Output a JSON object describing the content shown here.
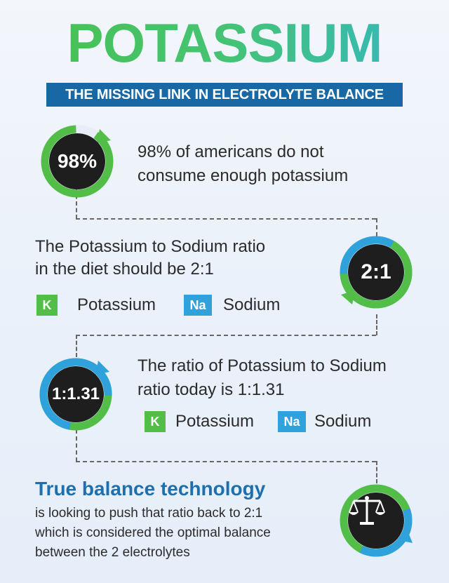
{
  "header": {
    "title": "POTASSIUM",
    "subtitle": "THE MISSING LINK IN ELECTROLYTE BALANCE"
  },
  "stat1": {
    "badge": "98%",
    "text_line1": "98% of americans do not",
    "text_line2": "consume enough potassium"
  },
  "stat2": {
    "badge": "2:1",
    "text_line1": "The Potassium to Sodium ratio",
    "text_line2": "in the diet should be 2:1",
    "legend": {
      "k_symbol": "K",
      "k_label": "Potassium",
      "na_symbol": "Na",
      "na_label": "Sodium"
    }
  },
  "stat3": {
    "badge": "1:1.31",
    "text_line1": "The ratio of Potassium to Sodium",
    "text_line2": "ratio today is 1:1.31",
    "legend": {
      "k_symbol": "K",
      "k_label": "Potassium",
      "na_symbol": "Na",
      "na_label": "Sodium"
    }
  },
  "footer": {
    "headline": "True balance technology",
    "line1": "is looking to push that ratio back to 2:1",
    "line2": "which is considered the optimal balance",
    "line3": "between the 2 electrolytes",
    "icon": "balance-scale-icon"
  },
  "colors": {
    "green": "#52be48",
    "blue": "#2fa2dc",
    "navy": "#1868a6",
    "dark": "#1e1e1e"
  }
}
